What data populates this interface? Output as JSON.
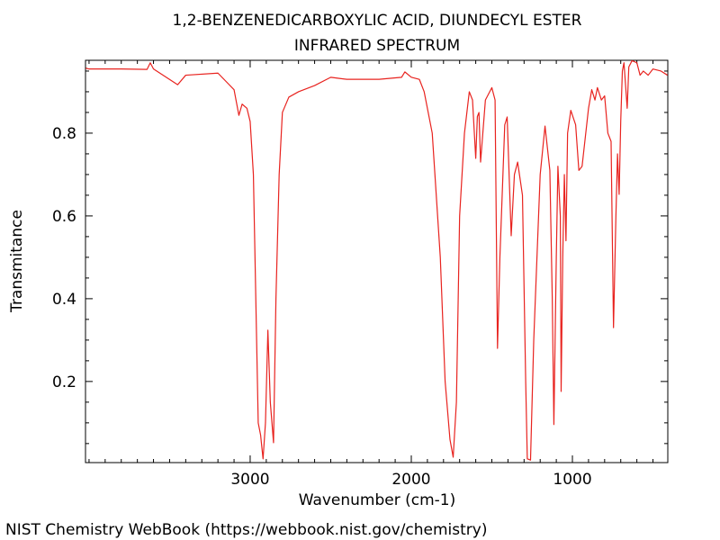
{
  "chart_data": {
    "type": "line",
    "title": "1,2-BENZENEDICARBOXYLIC ACID, DIUNDECYL ESTER",
    "subtitle": "INFRARED SPECTRUM",
    "x_label": "Wavenumber (cm-1)",
    "y_label": "Transmitance",
    "footer": "NIST Chemistry WebBook (https://webbook.nist.gov/chemistry)",
    "color": "#e8231f",
    "x": [
      4020,
      4000,
      3800,
      3640,
      3620,
      3600,
      3450,
      3400,
      3200,
      3100,
      3070,
      3050,
      3020,
      3000,
      2980,
      2960,
      2950,
      2935,
      2930,
      2920,
      2905,
      2890,
      2875,
      2855,
      2840,
      2820,
      2800,
      2760,
      2700,
      2600,
      2500,
      2400,
      2200,
      2060,
      2040,
      2000,
      1950,
      1920,
      1870,
      1820,
      1790,
      1760,
      1740,
      1720,
      1700,
      1670,
      1640,
      1620,
      1600,
      1590,
      1580,
      1570,
      1540,
      1500,
      1480,
      1465,
      1450,
      1420,
      1405,
      1380,
      1360,
      1340,
      1310,
      1290,
      1280,
      1260,
      1240,
      1200,
      1170,
      1140,
      1125,
      1115,
      1100,
      1090,
      1075,
      1070,
      1060,
      1050,
      1040,
      1030,
      1010,
      980,
      960,
      940,
      900,
      880,
      860,
      845,
      820,
      800,
      780,
      760,
      745,
      730,
      720,
      710,
      700,
      690,
      680,
      660,
      650,
      630,
      600,
      580,
      560,
      530,
      500,
      450,
      410
    ],
    "values": [
      0.957,
      0.955,
      0.955,
      0.954,
      0.97,
      0.955,
      0.917,
      0.94,
      0.945,
      0.905,
      0.843,
      0.87,
      0.86,
      0.828,
      0.7,
      0.3,
      0.1,
      0.07,
      0.05,
      0.013,
      0.1,
      0.324,
      0.15,
      0.052,
      0.4,
      0.7,
      0.85,
      0.887,
      0.9,
      0.915,
      0.935,
      0.93,
      0.93,
      0.935,
      0.948,
      0.935,
      0.93,
      0.9,
      0.8,
      0.5,
      0.2,
      0.06,
      0.017,
      0.15,
      0.6,
      0.8,
      0.9,
      0.88,
      0.739,
      0.84,
      0.85,
      0.73,
      0.88,
      0.91,
      0.88,
      0.28,
      0.5,
      0.82,
      0.839,
      0.552,
      0.7,
      0.73,
      0.65,
      0.2,
      0.013,
      0.01,
      0.3,
      0.7,
      0.817,
      0.71,
      0.4,
      0.096,
      0.5,
      0.72,
      0.6,
      0.176,
      0.5,
      0.7,
      0.54,
      0.8,
      0.855,
      0.82,
      0.71,
      0.72,
      0.86,
      0.905,
      0.88,
      0.91,
      0.88,
      0.89,
      0.8,
      0.78,
      0.33,
      0.6,
      0.75,
      0.652,
      0.83,
      0.95,
      0.97,
      0.86,
      0.96,
      0.975,
      0.97,
      0.94,
      0.95,
      0.94,
      0.955,
      0.95,
      0.94
    ],
    "xlim": [
      4022,
      408
    ],
    "ylim": [
      0.004,
      0.976
    ],
    "xticks": [
      3000,
      2000,
      1000
    ],
    "yticks": [
      0.2,
      0.4,
      0.6,
      0.8
    ],
    "xminorticks": [
      4000,
      3900,
      3800,
      3700,
      3600,
      3500,
      3400,
      3300,
      3200,
      3100,
      2900,
      2800,
      2700,
      2600,
      2500,
      2400,
      2300,
      2200,
      2100,
      1900,
      1800,
      1700,
      1600,
      1500,
      1400,
      1300,
      1200,
      1100,
      900,
      800,
      700,
      600,
      500
    ],
    "yminorticks": [
      0.05,
      0.1,
      0.15,
      0.25,
      0.3,
      0.35,
      0.45,
      0.5,
      0.55,
      0.65,
      0.7,
      0.75,
      0.85,
      0.9,
      0.95
    ]
  }
}
